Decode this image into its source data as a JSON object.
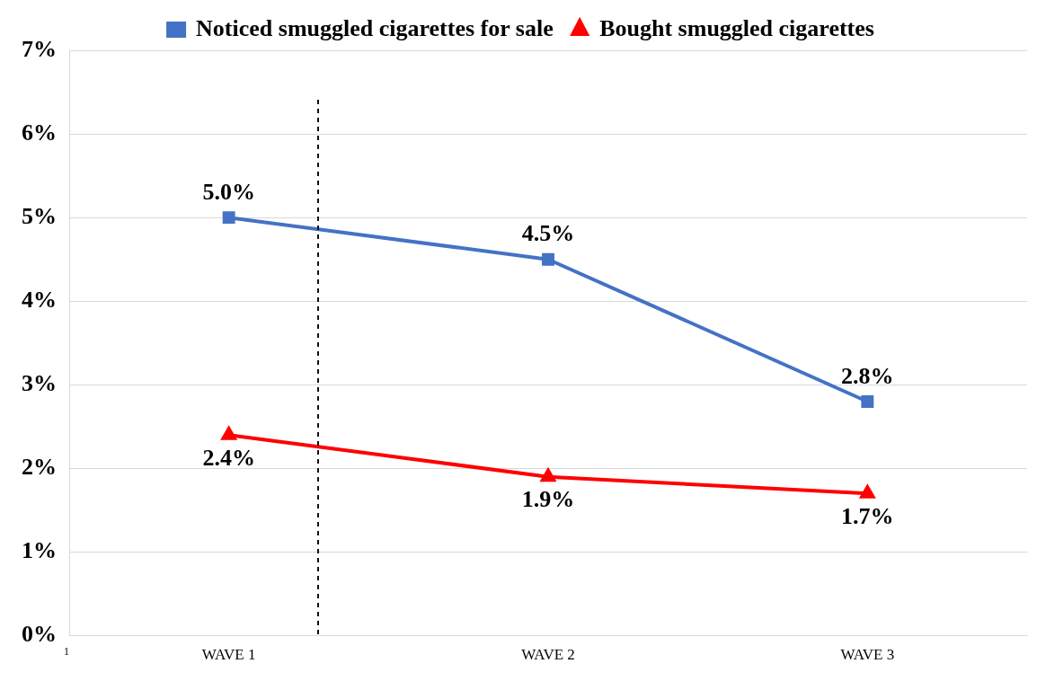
{
  "chart_data": {
    "type": "line",
    "categories": [
      "WAVE 1",
      "WAVE 2",
      "WAVE 3"
    ],
    "ylim": [
      0,
      7
    ],
    "yticks": [
      {
        "value": 0,
        "label": "0%"
      },
      {
        "value": 1,
        "label": "1%"
      },
      {
        "value": 2,
        "label": "2%"
      },
      {
        "value": 3,
        "label": "3%"
      },
      {
        "value": 4,
        "label": "4%"
      },
      {
        "value": 5,
        "label": "5%"
      },
      {
        "value": 6,
        "label": "6%"
      },
      {
        "value": 7,
        "label": "7%"
      }
    ],
    "series": [
      {
        "name": "Noticed smuggled cigarettes for sale",
        "color": "#4472c4",
        "marker": "square",
        "values": [
          5.0,
          4.5,
          2.8
        ],
        "value_labels": [
          "5.0%",
          "4.5%",
          "2.8%"
        ]
      },
      {
        "name": "Bought smuggled cigarettes",
        "color": "#ff0000",
        "marker": "triangle",
        "values": [
          2.4,
          1.9,
          1.7
        ],
        "value_labels": [
          "2.4%",
          "1.9%",
          "1.7%"
        ]
      }
    ],
    "annotations": [
      "1"
    ],
    "grid": "y",
    "legend": "top"
  }
}
